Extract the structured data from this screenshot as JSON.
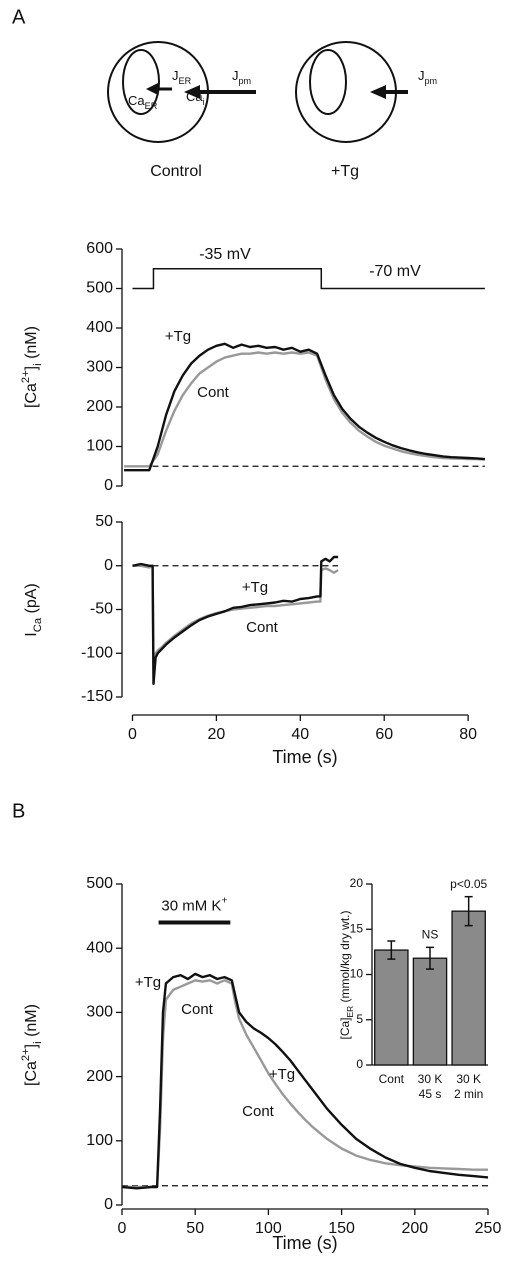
{
  "panel_labels": [
    "A",
    "B"
  ],
  "diagram": {
    "cells": [
      {
        "caption": "Control",
        "labels": [
          [
            {
              "text": "J"
            },
            {
              "text": "ER",
              "shift": "sub"
            }
          ],
          [
            {
              "text": "Ca"
            },
            {
              "text": "ER",
              "shift": "sub"
            }
          ],
          [
            {
              "text": "Ca"
            },
            {
              "text": "i",
              "shift": "sub"
            }
          ],
          [
            {
              "text": "J"
            },
            {
              "text": "pm",
              "shift": "sub"
            }
          ]
        ]
      },
      {
        "caption": "+Tg",
        "labels": [
          [
            {
              "text": "J"
            },
            {
              "text": "pm",
              "shift": "sub"
            }
          ]
        ]
      }
    ]
  },
  "chart_data": [
    {
      "type": "line",
      "ylabel": [
        {
          "text": "[Ca"
        },
        {
          "text": "2+",
          "shift": "sup"
        },
        {
          "text": "]"
        },
        {
          "text": "i",
          "shift": "sub"
        },
        {
          "text": " (nM)"
        }
      ],
      "xlim": [
        -2.5,
        84.5
      ],
      "ylim": [
        0,
        600
      ],
      "yticks": [
        0,
        100,
        200,
        300,
        400,
        500,
        600
      ],
      "reference": 50,
      "protocol": {
        "x": [
          0,
          5,
          5,
          45,
          45,
          84
        ],
        "values": [
          500,
          500,
          550,
          550,
          500,
          500
        ],
        "labels": [
          "-35 mV",
          "-70 mV"
        ]
      },
      "x": [
        -2,
        0,
        2,
        4,
        6,
        8,
        10,
        12,
        14,
        16,
        18,
        20,
        22,
        24,
        26,
        28,
        30,
        32,
        34,
        36,
        38,
        40,
        42,
        44,
        46,
        48,
        50,
        52,
        54,
        56,
        58,
        60,
        62,
        64,
        66,
        68,
        70,
        72,
        74,
        76,
        78,
        80,
        82,
        84
      ],
      "series": [
        {
          "name": "+Tg",
          "color": "#111111",
          "values": [
            40,
            40,
            40,
            40,
            100,
            180,
            240,
            280,
            310,
            330,
            345,
            355,
            360,
            350,
            358,
            352,
            355,
            350,
            352,
            345,
            350,
            340,
            345,
            335,
            280,
            230,
            195,
            170,
            150,
            135,
            122,
            112,
            103,
            96,
            90,
            85,
            81,
            78,
            75,
            73,
            72,
            71,
            70,
            68
          ]
        },
        {
          "name": "Cont",
          "color": "#999999",
          "values": [
            50,
            50,
            50,
            50,
            80,
            140,
            190,
            230,
            260,
            285,
            300,
            315,
            325,
            330,
            335,
            335,
            338,
            335,
            338,
            335,
            338,
            335,
            338,
            330,
            270,
            220,
            185,
            160,
            140,
            125,
            112,
            102,
            95,
            88,
            83,
            79,
            76,
            73,
            71,
            70,
            69,
            68,
            68,
            67
          ]
        }
      ]
    },
    {
      "type": "line",
      "ylabel": [
        {
          "text": "I"
        },
        {
          "text": "Ca",
          "shift": "sub"
        },
        {
          "text": " (pA)"
        }
      ],
      "xlabel": "Time (s)",
      "xlim": [
        -2.5,
        84.5
      ],
      "xticks": [
        0,
        20,
        40,
        60,
        80
      ],
      "ylim": [
        -150,
        50
      ],
      "yticks": [
        -150,
        -100,
        -50,
        0,
        50
      ],
      "reference": 0,
      "x": [
        0,
        2,
        4,
        4.8,
        5,
        5.5,
        6,
        7,
        8,
        10,
        12,
        14,
        16,
        18,
        20,
        22,
        24,
        26,
        28,
        30,
        32,
        34,
        36,
        38,
        40,
        42,
        44,
        44.8,
        45,
        46,
        47,
        48,
        49
      ],
      "series": [
        {
          "name": "+Tg",
          "color": "#111111",
          "values": [
            0,
            2,
            0,
            0,
            -135,
            -105,
            -100,
            -95,
            -90,
            -82,
            -75,
            -68,
            -62,
            -58,
            -55,
            -52,
            -48,
            -47,
            -45,
            -44,
            -43,
            -42,
            -40,
            -41,
            -38,
            -37,
            -35,
            -35,
            5,
            8,
            5,
            10,
            10
          ]
        },
        {
          "name": "Cont",
          "color": "#999999",
          "values": [
            0,
            0,
            -2,
            0,
            -120,
            -100,
            -97,
            -93,
            -88,
            -80,
            -73,
            -66,
            -61,
            -57,
            -54,
            -52,
            -50,
            -49,
            -48,
            -47,
            -46,
            -46,
            -45,
            -44,
            -43,
            -42,
            -41,
            -41,
            -5,
            -3,
            -5,
            -8,
            -5
          ]
        }
      ]
    },
    {
      "type": "line",
      "ylabel": [
        {
          "text": "[Ca"
        },
        {
          "text": "2+",
          "shift": "sup"
        },
        {
          "text": "]"
        },
        {
          "text": "i",
          "shift": "sub"
        },
        {
          "text": " (nM)"
        }
      ],
      "xlabel": "Time (s)",
      "xlim": [
        0,
        250
      ],
      "xticks": [
        0,
        50,
        100,
        150,
        200,
        250
      ],
      "ylim": [
        0,
        500
      ],
      "yticks": [
        0,
        100,
        200,
        300,
        400,
        500
      ],
      "reference": 30,
      "stimulus": {
        "label": [
          {
            "text": "30 mM K"
          },
          {
            "text": "+",
            "shift": "sup"
          }
        ],
        "x": [
          25,
          74
        ],
        "y": 440
      },
      "x": [
        0,
        5,
        10,
        15,
        20,
        24,
        26,
        28,
        30,
        35,
        40,
        45,
        50,
        55,
        60,
        65,
        70,
        75,
        77,
        80,
        85,
        90,
        95,
        100,
        105,
        110,
        115,
        120,
        125,
        130,
        140,
        150,
        160,
        170,
        180,
        190,
        200,
        210,
        220,
        230,
        240,
        250
      ],
      "series": [
        {
          "name": "+Tg",
          "color": "#111111",
          "values": [
            28,
            27,
            26,
            27,
            28,
            28,
            150,
            300,
            345,
            355,
            358,
            352,
            360,
            355,
            358,
            352,
            355,
            350,
            330,
            300,
            285,
            275,
            268,
            260,
            250,
            238,
            225,
            210,
            195,
            180,
            150,
            125,
            103,
            87,
            74,
            64,
            58,
            53,
            50,
            47,
            45,
            43
          ]
        },
        {
          "name": "Cont",
          "color": "#999999",
          "values": [
            28,
            28,
            28,
            28,
            28,
            28,
            120,
            260,
            320,
            335,
            340,
            345,
            350,
            348,
            350,
            345,
            350,
            345,
            320,
            290,
            265,
            245,
            225,
            205,
            188,
            172,
            158,
            145,
            133,
            122,
            103,
            88,
            77,
            70,
            65,
            62,
            60,
            58,
            57,
            56,
            55,
            55
          ]
        }
      ]
    },
    {
      "type": "bar",
      "ylabel": [
        {
          "text": "[Ca]"
        },
        {
          "text": "ER",
          "shift": "sub"
        },
        {
          "text": " (mmol/kg dry wt.)"
        }
      ],
      "ylim": [
        0,
        20
      ],
      "yticks": [
        0,
        5,
        10,
        15,
        20
      ],
      "categories": [
        [
          "Cont"
        ],
        [
          "30 K",
          "45 s"
        ],
        [
          "30 K",
          "2 min"
        ]
      ],
      "values": [
        12.7,
        11.8,
        17.0
      ],
      "errors": [
        1.0,
        1.2,
        1.6
      ],
      "value_annotations": [
        null,
        "NS",
        "p<0.05"
      ],
      "color": "#8a8a8a"
    }
  ]
}
